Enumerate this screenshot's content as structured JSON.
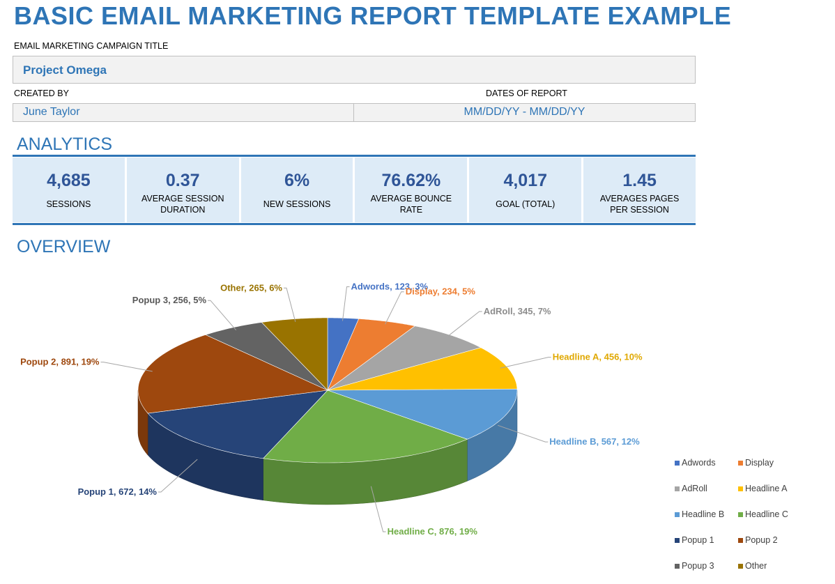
{
  "title": "BASIC EMAIL MARKETING REPORT TEMPLATE EXAMPLE",
  "campaign": {
    "label": "EMAIL MARKETING CAMPAIGN TITLE",
    "value": "Project Omega"
  },
  "created_by": {
    "label": "CREATED BY",
    "value": "June Taylor"
  },
  "dates": {
    "label": "DATES OF REPORT",
    "value": "MM/DD/YY - MM/DD/YY"
  },
  "analytics": {
    "heading": "ANALYTICS",
    "kpis": [
      {
        "value": "4,685",
        "label": "SESSIONS"
      },
      {
        "value": "0.37",
        "label": "AVERAGE SESSION DURATION"
      },
      {
        "value": "6%",
        "label": "NEW SESSIONS"
      },
      {
        "value": "76.62%",
        "label": "AVERAGE BOUNCE RATE"
      },
      {
        "value": "4,017",
        "label": "GOAL (TOTAL)"
      },
      {
        "value": "1.45",
        "label": "AVERAGES PAGES PER SESSION"
      }
    ]
  },
  "overview": {
    "heading": "OVERVIEW"
  },
  "chart_data": {
    "type": "pie",
    "style": "3d",
    "title": "",
    "legend_position": "bottom-right",
    "slices": [
      {
        "name": "Adwords",
        "value": 123,
        "percent": "3%",
        "color": "#4472c4"
      },
      {
        "name": "Display",
        "value": 234,
        "percent": "5%",
        "color": "#ed7d31"
      },
      {
        "name": "AdRoll",
        "value": 345,
        "percent": "7%",
        "color": "#a5a5a5"
      },
      {
        "name": "Headline A",
        "value": 456,
        "percent": "10%",
        "color": "#ffc000"
      },
      {
        "name": "Headline B",
        "value": 567,
        "percent": "12%",
        "color": "#5b9bd5"
      },
      {
        "name": "Headline C",
        "value": 876,
        "percent": "19%",
        "color": "#70ad47"
      },
      {
        "name": "Popup 1",
        "value": 672,
        "percent": "14%",
        "color": "#264478"
      },
      {
        "name": "Popup 2",
        "value": 891,
        "percent": "19%",
        "color": "#9e480e"
      },
      {
        "name": "Popup 3",
        "value": 256,
        "percent": "5%",
        "color": "#636363"
      },
      {
        "name": "Other",
        "value": 265,
        "percent": "6%",
        "color": "#997300"
      }
    ]
  }
}
